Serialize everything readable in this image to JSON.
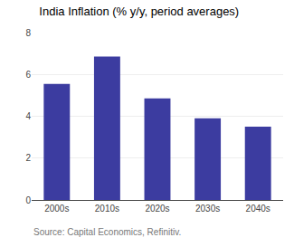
{
  "chart_data": {
    "type": "bar",
    "title": "India Inflation (% y/y, period averages)",
    "categories": [
      "2000s",
      "2010s",
      "2020s",
      "2030s",
      "2040s"
    ],
    "values": [
      5.55,
      6.85,
      4.85,
      3.9,
      3.5
    ],
    "color": "#3c3ca0",
    "ylim": [
      0,
      8
    ],
    "yticks": [
      0,
      2,
      4,
      6,
      8
    ],
    "grid": true,
    "annotations": [
      "Source: Capital Economics, Refinitiv."
    ]
  }
}
